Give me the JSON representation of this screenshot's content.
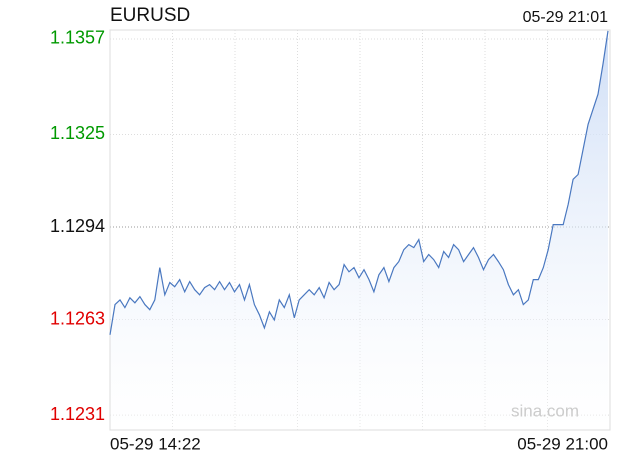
{
  "chart_data": {
    "type": "line",
    "title": "EURUSD",
    "timestamp": "05-29 21:01",
    "watermark": "sina.com",
    "xtick_labels": [
      "05-29 14:22",
      "05-29 21:00"
    ],
    "ylim": [
      1.1226,
      1.136
    ],
    "yticks": [
      1.1231,
      1.1263,
      1.1294,
      1.1325,
      1.1357
    ],
    "baseline": 1.1294,
    "up_color": "#009900",
    "down_color": "#e00000",
    "color": "#4a78c0",
    "grid": true,
    "values": [
      1.12579,
      1.1268,
      1.12696,
      1.1267,
      1.12703,
      1.12686,
      1.12707,
      1.1268,
      1.12663,
      1.12696,
      1.12804,
      1.12713,
      1.12754,
      1.1274,
      1.12764,
      1.12723,
      1.12757,
      1.1273,
      1.12713,
      1.12737,
      1.12747,
      1.1273,
      1.12757,
      1.1273,
      1.12754,
      1.12723,
      1.12747,
      1.12696,
      1.12747,
      1.1268,
      1.12646,
      1.12602,
      1.12656,
      1.12629,
      1.12696,
      1.1267,
      1.12713,
      1.12636,
      1.12696,
      1.12713,
      1.1273,
      1.12713,
      1.12737,
      1.12703,
      1.12754,
      1.1273,
      1.12747,
      1.12814,
      1.1279,
      1.12804,
      1.1277,
      1.12797,
      1.12764,
      1.12723,
      1.1278,
      1.12804,
      1.12757,
      1.12804,
      1.12824,
      1.12864,
      1.12881,
      1.12871,
      1.12898,
      1.12824,
      1.12848,
      1.12831,
      1.12804,
      1.12858,
      1.12838,
      1.12881,
      1.12864,
      1.12824,
      1.12848,
      1.12871,
      1.12838,
      1.12797,
      1.12831,
      1.12848,
      1.12824,
      1.12797,
      1.12747,
      1.12713,
      1.1273,
      1.1268,
      1.12696,
      1.12764,
      1.12764,
      1.12804,
      1.12864,
      1.12948,
      1.12948,
      1.12948,
      1.13016,
      1.131,
      1.13116,
      1.132,
      1.13284,
      1.13335,
      1.13385,
      1.13486,
      1.13597
    ]
  }
}
